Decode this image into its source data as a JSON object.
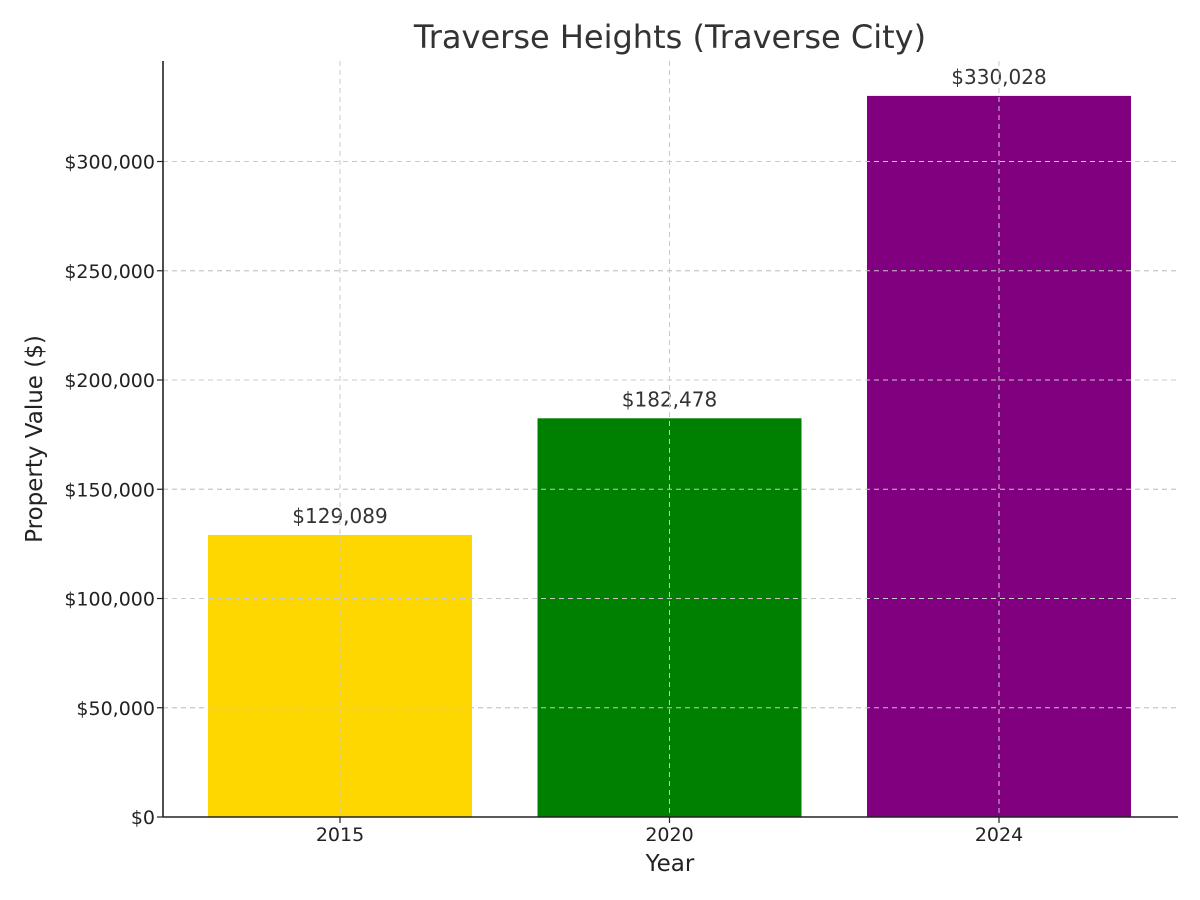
{
  "chart_data": {
    "type": "bar",
    "title": "Traverse Heights (Traverse City)",
    "xlabel": "Year",
    "ylabel": "Property Value ($)",
    "categories": [
      "2015",
      "2020",
      "2024"
    ],
    "values": [
      129089,
      182478,
      330028
    ],
    "value_labels": [
      "$129,089",
      "$182,478",
      "$330,028"
    ],
    "colors": [
      "#FFD700",
      "#008000",
      "#800080"
    ],
    "ylim": [
      0,
      346000
    ],
    "yticks": [
      0,
      50000,
      100000,
      150000,
      200000,
      250000,
      300000
    ],
    "ytick_labels": [
      "$0",
      "$50,000",
      "$100,000",
      "$150,000",
      "$200,000",
      "$250,000",
      "$300,000"
    ],
    "grid": true,
    "legend": "none"
  }
}
